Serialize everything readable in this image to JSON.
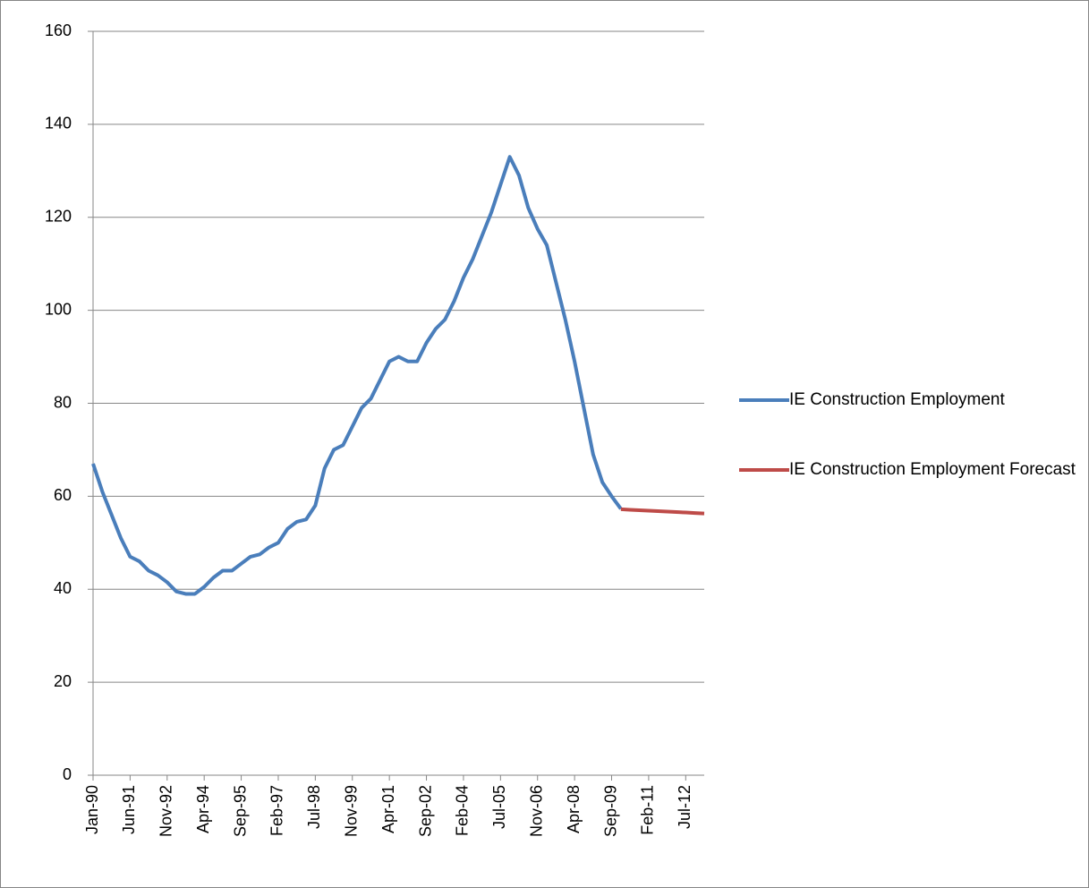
{
  "chart_data": {
    "type": "line",
    "categories": [
      "Jan-90",
      null,
      null,
      null,
      "Jun-91",
      null,
      null,
      null,
      "Nov-92",
      null,
      null,
      null,
      "Apr-94",
      null,
      null,
      null,
      "Sep-95",
      null,
      null,
      null,
      "Feb-97",
      null,
      null,
      null,
      "Jul-98",
      null,
      null,
      null,
      "Nov-99",
      null,
      null,
      null,
      "Apr-01",
      null,
      null,
      null,
      "Sep-02",
      null,
      null,
      null,
      "Feb-04",
      null,
      null,
      null,
      "Jul-05",
      null,
      null,
      null,
      "Nov-06",
      null,
      null,
      null,
      "Apr-08",
      null,
      null,
      null,
      "Sep-09",
      null,
      null,
      null,
      "Feb-11",
      null,
      null,
      null,
      "Jul-12",
      null,
      null
    ],
    "series": [
      {
        "name": "IE Construction Employment",
        "color": "#4a7ebb",
        "values": [
          67,
          61,
          56,
          51,
          47,
          46,
          44,
          43,
          41.5,
          39.5,
          39,
          39,
          40.5,
          42.5,
          44,
          44,
          45.5,
          47,
          47.5,
          49,
          50,
          53,
          54.5,
          55,
          58,
          66,
          70,
          71,
          75,
          79,
          81,
          85,
          89,
          90,
          89,
          89,
          93,
          96,
          98,
          102,
          107,
          111,
          116,
          121,
          127,
          133,
          129,
          122,
          117.5,
          114,
          106,
          98,
          89,
          79,
          69,
          63,
          60,
          57.3,
          null,
          null,
          null,
          null,
          null,
          null,
          null,
          null,
          null
        ]
      },
      {
        "name": "IE Construction Employment Forecast",
        "color": "#be4b48",
        "values": [
          null,
          null,
          null,
          null,
          null,
          null,
          null,
          null,
          null,
          null,
          null,
          null,
          null,
          null,
          null,
          null,
          null,
          null,
          null,
          null,
          null,
          null,
          null,
          null,
          null,
          null,
          null,
          null,
          null,
          null,
          null,
          null,
          null,
          null,
          null,
          null,
          null,
          null,
          null,
          null,
          null,
          null,
          null,
          null,
          null,
          null,
          null,
          null,
          null,
          null,
          null,
          null,
          null,
          null,
          null,
          null,
          null,
          57.2,
          57.1,
          57.0,
          56.9,
          56.8,
          56.7,
          56.6,
          56.5,
          56.4,
          56.3
        ]
      }
    ],
    "ylim": [
      0,
      160
    ],
    "yticks": [
      0,
      20,
      40,
      60,
      80,
      100,
      120,
      140,
      160
    ],
    "grid": true
  }
}
